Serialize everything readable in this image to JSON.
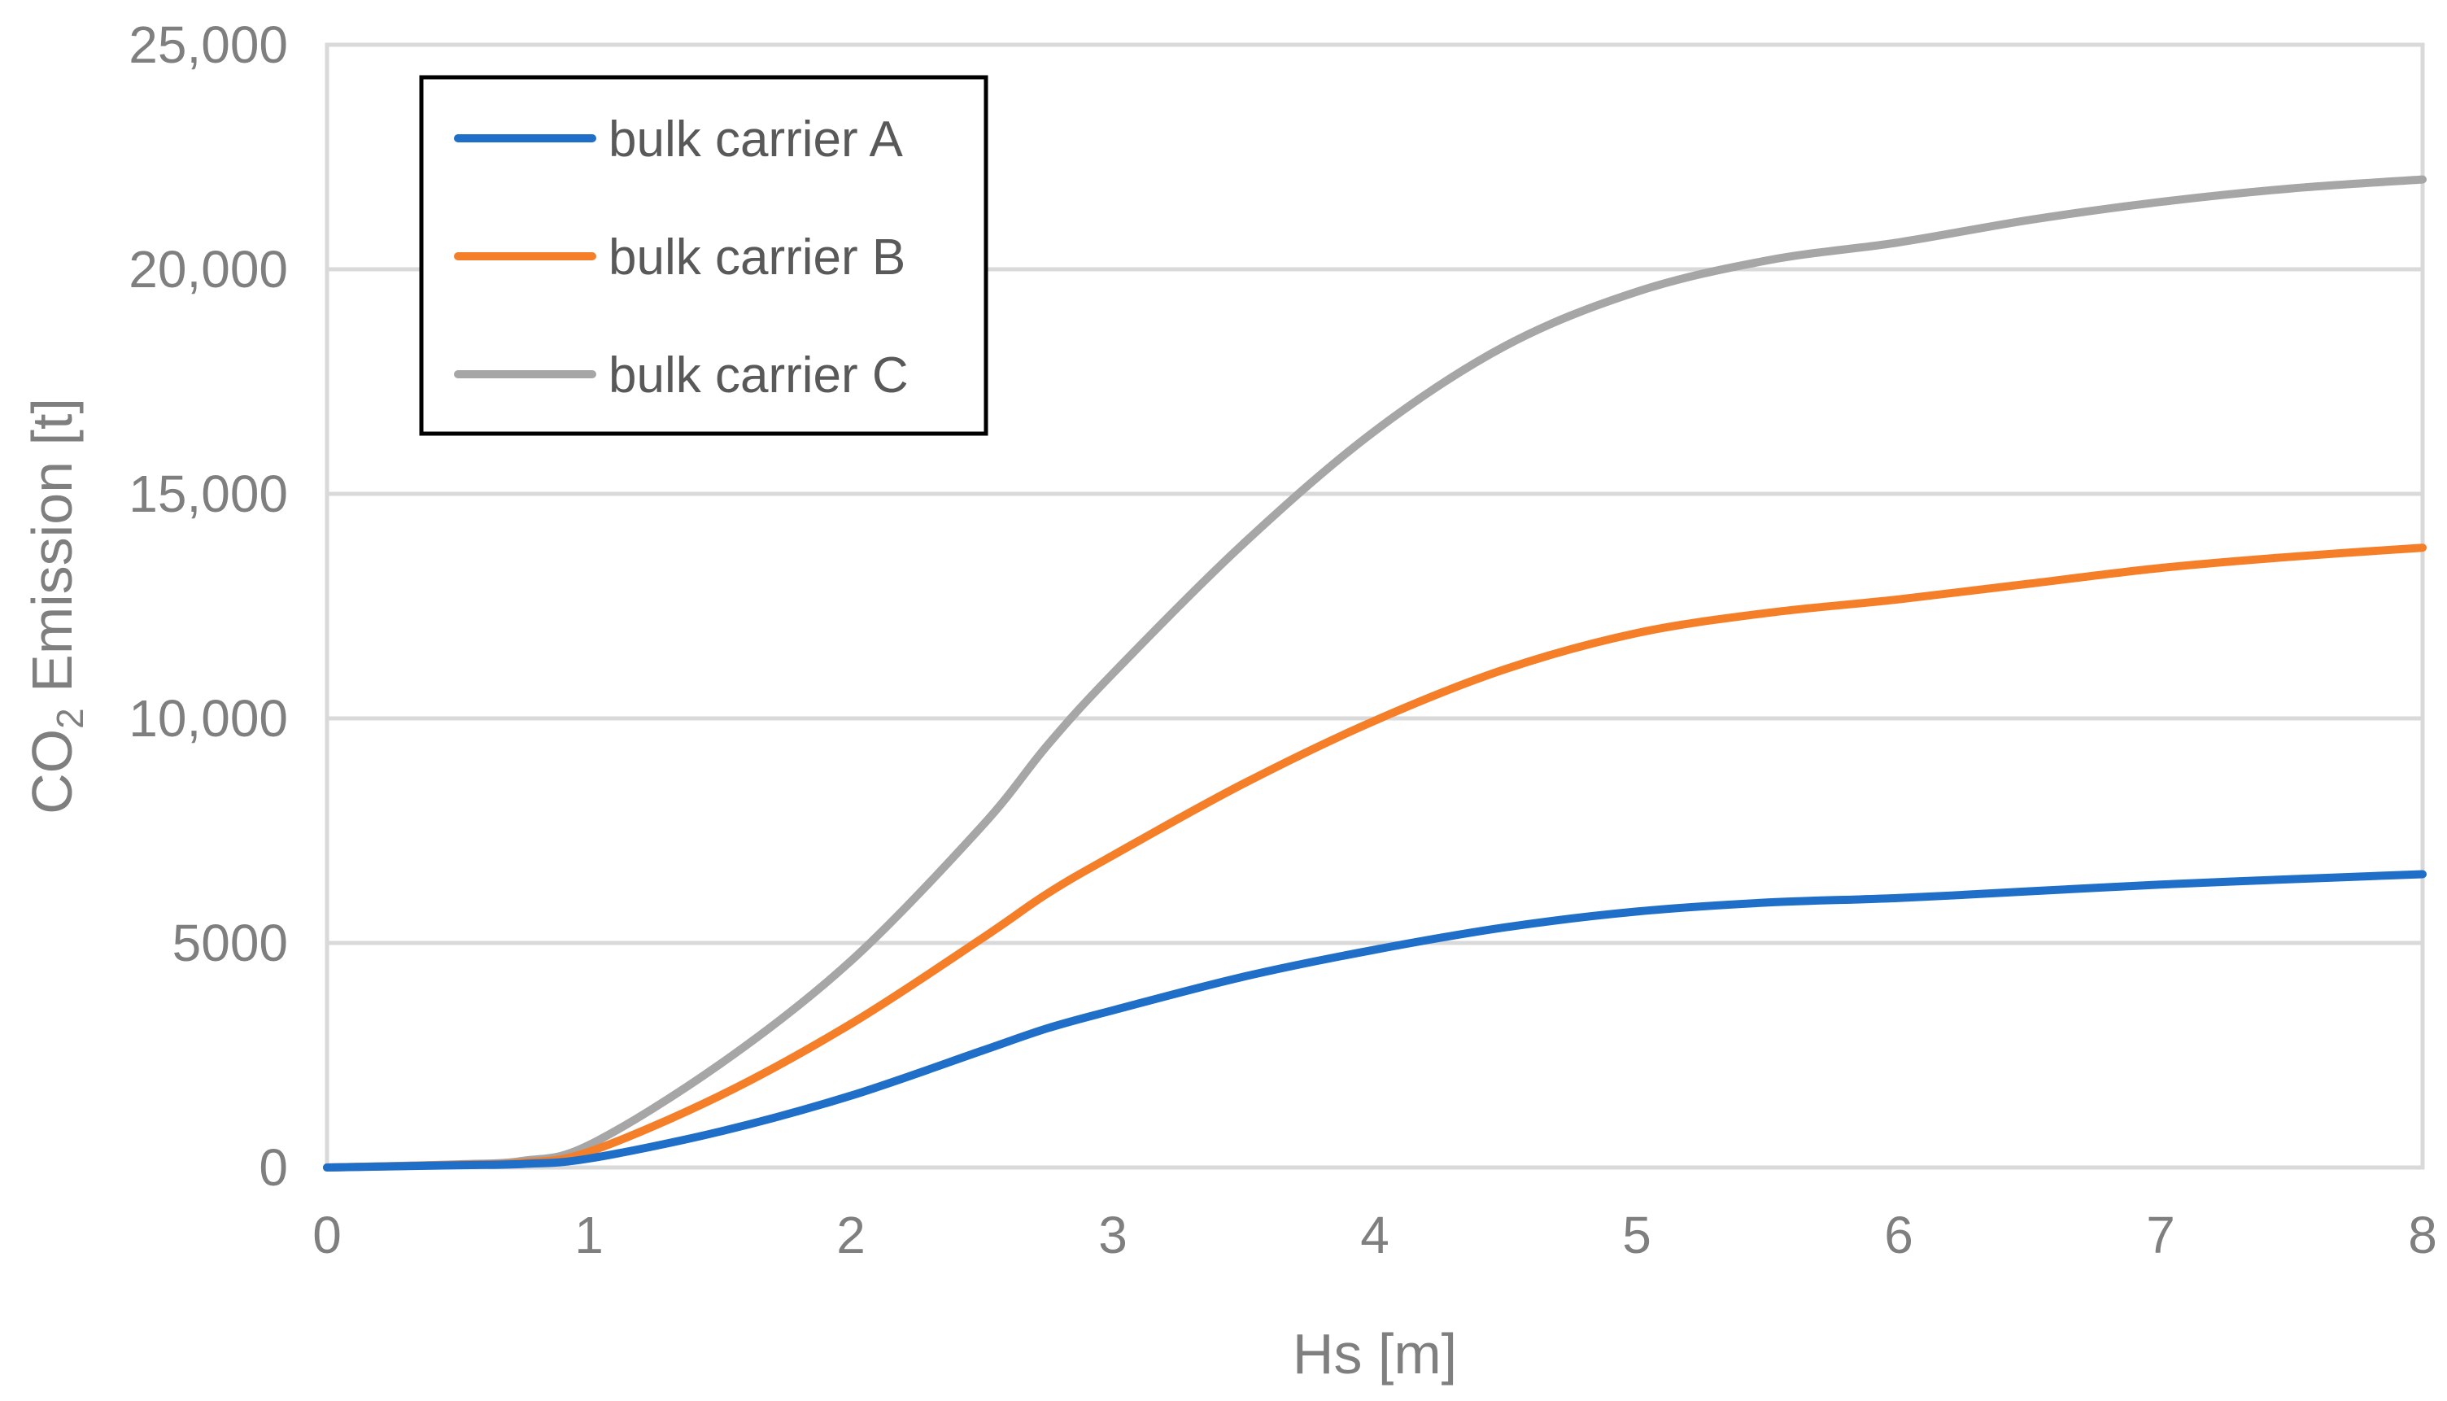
{
  "chart_data": {
    "type": "line",
    "title": "",
    "xlabel": "Hs [m]",
    "ylabel": {
      "prefix": "CO",
      "subscript": "2",
      "suffix": " Emission [t]"
    },
    "xlim": [
      0,
      8
    ],
    "ylim": [
      0,
      25000
    ],
    "x_ticks": [
      0,
      1,
      2,
      3,
      4,
      5,
      6,
      7,
      8
    ],
    "x_tick_labels": [
      "0",
      "1",
      "2",
      "3",
      "4",
      "5",
      "6",
      "7",
      "8"
    ],
    "y_ticks": [
      0,
      5000,
      10000,
      15000,
      20000,
      25000
    ],
    "y_tick_labels": [
      "0",
      "5000",
      "10,000",
      "15,000",
      "20,000",
      "25,000"
    ],
    "grid": "horizontal",
    "legend_position": "top-left",
    "x": [
      0,
      0.5,
      0.75,
      1,
      1.5,
      2,
      2.5,
      2.75,
      3,
      3.5,
      4,
      4.5,
      5,
      5.5,
      6,
      6.5,
      7,
      7.5,
      8
    ],
    "series": [
      {
        "name": "bulk carrier A",
        "color": "#1f6fc8",
        "values": [
          0,
          50,
          80,
          200,
          800,
          1600,
          2600,
          3100,
          3500,
          4250,
          4850,
          5350,
          5700,
          5900,
          6000,
          6150,
          6300,
          6420,
          6530
        ]
      },
      {
        "name": "bulk carrier B",
        "color": "#f57f29",
        "values": [
          0,
          60,
          110,
          350,
          1600,
          3200,
          5100,
          6100,
          6950,
          8550,
          9950,
          11100,
          11900,
          12350,
          12650,
          13000,
          13350,
          13600,
          13800
        ]
      },
      {
        "name": "bulk carrier C",
        "color": "#a6a6a6",
        "values": [
          0,
          70,
          150,
          500,
          2300,
          4600,
          7600,
          9400,
          11000,
          13900,
          16400,
          18300,
          19500,
          20200,
          20600,
          21100,
          21500,
          21800,
          22000
        ]
      }
    ]
  }
}
